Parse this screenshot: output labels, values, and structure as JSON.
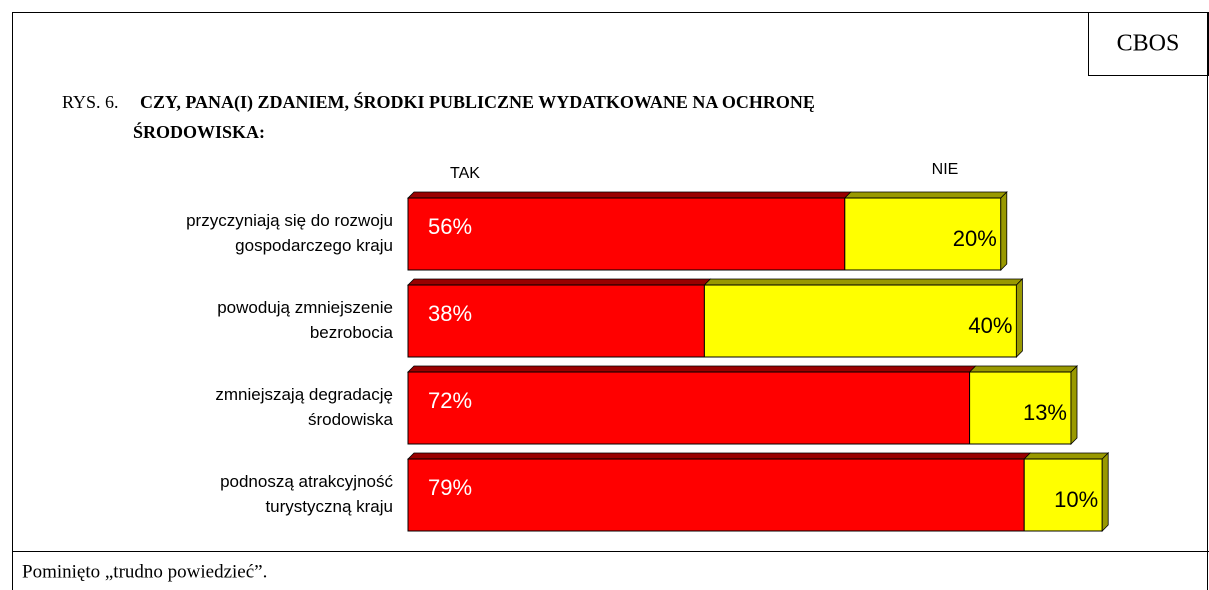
{
  "chart_data": {
    "type": "bar",
    "orientation": "horizontal",
    "stacked": true,
    "source": "CBOS",
    "figure_label": "RYS. 6.",
    "title": [
      "CZY, PANA(I) ZDANIEM, ŚRODKI PUBLICZNE WYDATKOWANE NA OCHRONĘ",
      "ŚRODOWISKA:"
    ],
    "categories": [
      [
        "przyczyniają się do rozwoju",
        "gospodarczego kraju"
      ],
      [
        "powodują zmniejszenie",
        "bezrobocia"
      ],
      [
        "zmniejszają degradację",
        "środowiska"
      ],
      [
        "podnoszą atrakcyjność",
        "turystyczną kraju"
      ]
    ],
    "series": [
      {
        "name": "TAK",
        "color": "#ff0000",
        "values": [
          56,
          38,
          72,
          79
        ],
        "value_labels": [
          "56%",
          "38%",
          "72%",
          "79%"
        ]
      },
      {
        "name": "NIE",
        "color": "#ffff00",
        "values": [
          20,
          40,
          13,
          10
        ],
        "value_labels": [
          "20%",
          "40%",
          "13%",
          "10%"
        ]
      }
    ],
    "note": "Pominięto „trudno powiedzieć”."
  }
}
